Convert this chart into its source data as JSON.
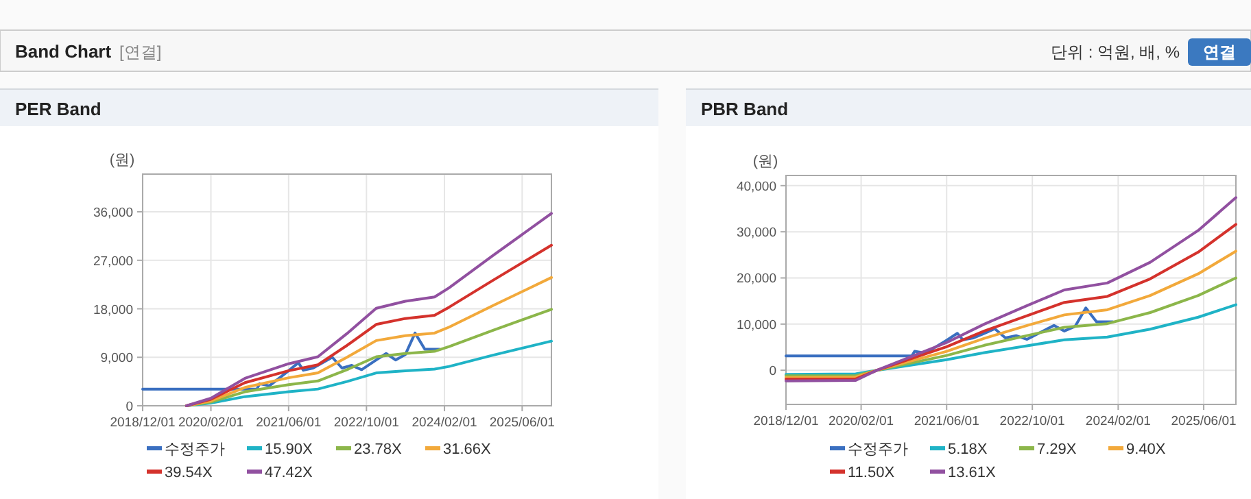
{
  "chart_data": [
    {
      "type": "other",
      "title": "Band Chart",
      "annotations": [
        "[연결]",
        "단위 : 억원, 배, %",
        "연결"
      ]
    },
    {
      "type": "line",
      "title": "PER Band",
      "ylabel": "(원)",
      "x": [
        "2019-09-01",
        "2020-02-01",
        "2020-09-01",
        "2021-06-01",
        "2021-12-01",
        "2022-06-01",
        "2022-12-01",
        "2023-06-01",
        "2023-12-01",
        "2024-03-01",
        "2024-12-01",
        "2025-12-01"
      ],
      "series": [
        {
          "name": "수정주가",
          "color": "#3a6fc0",
          "x": [
            "2018-12-01",
            "2020-11-15",
            "2020-12-01",
            "2021-02-01",
            "2021-06-01",
            "2021-08-01",
            "2021-09-01",
            "2021-11-01",
            "2022-01-01",
            "2022-03-01",
            "2022-05-01",
            "2022-07-01",
            "2022-09-01",
            "2022-12-01",
            "2023-02-01",
            "2023-04-01",
            "2023-06-01",
            "2023-08-01",
            "2023-10-01",
            "2024-01-01"
          ],
          "values": [
            3100,
            3100,
            4100,
            3700,
            6500,
            8000,
            6600,
            7000,
            8000,
            9000,
            7000,
            7500,
            6700,
            8500,
            9700,
            8500,
            9500,
            13500,
            10500,
            10500
          ]
        },
        {
          "name": "15.90X",
          "color": "#1fb3c6",
          "values": [
            0,
            500,
            1700,
            2600,
            3100,
            4500,
            6100,
            6500,
            6800,
            7300,
            9400,
            12000
          ]
        },
        {
          "name": "23.78X",
          "color": "#8cb64a",
          "values": [
            0,
            700,
            2600,
            3900,
            4600,
            6700,
            9100,
            9700,
            10100,
            11000,
            14000,
            17900
          ]
        },
        {
          "name": "31.66X",
          "color": "#f2a93b",
          "values": [
            0,
            900,
            3400,
            5200,
            6100,
            9000,
            12100,
            13000,
            13500,
            14600,
            18600,
            23800
          ]
        },
        {
          "name": "39.54X",
          "color": "#d4322c",
          "values": [
            0,
            1200,
            4300,
            6500,
            7600,
            11200,
            15100,
            16200,
            16800,
            18300,
            23300,
            29800
          ]
        },
        {
          "name": "47.42X",
          "color": "#9150a0",
          "values": [
            0,
            1400,
            5100,
            7800,
            9100,
            13400,
            18100,
            19400,
            20200,
            21900,
            27900,
            35700
          ]
        }
      ],
      "xlim": [
        "2018-12-01",
        "2025-12-01"
      ],
      "ylim": [
        0,
        43000
      ],
      "xticks": [
        {
          "value": "2018-12-01",
          "label": "2018/12/01"
        },
        {
          "value": "2020-02-01",
          "label": "2020/02/01"
        },
        {
          "value": "2021-06-01",
          "label": "2021/06/01"
        },
        {
          "value": "2022-10-01",
          "label": "2022/10/01"
        },
        {
          "value": "2024-02-01",
          "label": "2024/02/01"
        },
        {
          "value": "2025-06-01",
          "label": "2025/06/01"
        }
      ],
      "yticks": [
        {
          "value": 0,
          "label": "0"
        },
        {
          "value": 9000,
          "label": "9,000"
        },
        {
          "value": 18000,
          "label": "18,000"
        },
        {
          "value": 27000,
          "label": "27,000"
        },
        {
          "value": 36000,
          "label": "36,000"
        }
      ],
      "grid": true,
      "legend": "bottom"
    },
    {
      "type": "line",
      "title": "PBR Band",
      "ylabel": "(원)",
      "x": [
        "2018-12-01",
        "2020-01-01",
        "2020-05-01",
        "2021-06-01",
        "2022-01-01",
        "2022-09-01",
        "2023-04-01",
        "2023-12-01",
        "2024-08-01",
        "2025-05-01",
        "2025-12-01"
      ],
      "series": [
        {
          "name": "수정주가",
          "color": "#3a6fc0",
          "x": [
            "2018-12-01",
            "2020-11-15",
            "2020-12-01",
            "2021-02-01",
            "2021-06-01",
            "2021-08-01",
            "2021-09-01",
            "2021-11-01",
            "2022-01-01",
            "2022-03-01",
            "2022-05-01",
            "2022-07-01",
            "2022-09-01",
            "2022-12-01",
            "2023-02-01",
            "2023-04-01",
            "2023-06-01",
            "2023-08-01",
            "2023-10-01",
            "2024-01-01"
          ],
          "values": [
            3100,
            3100,
            4100,
            3700,
            6500,
            8000,
            6600,
            7000,
            8000,
            9000,
            7000,
            7500,
            6700,
            8500,
            9700,
            8500,
            9500,
            13500,
            10500,
            10500
          ]
        },
        {
          "name": "5.18X",
          "color": "#1fb3c6",
          "values": [
            -900,
            -800,
            0,
            2300,
            3800,
            5300,
            6600,
            7200,
            8900,
            11500,
            14200
          ]
        },
        {
          "name": "7.29X",
          "color": "#8cb64a",
          "values": [
            -1200,
            -1200,
            0,
            3200,
            5400,
            7500,
            9300,
            10100,
            12500,
            16200,
            20000
          ]
        },
        {
          "name": "9.40X",
          "color": "#f2a93b",
          "values": [
            -1600,
            -1500,
            0,
            4100,
            6900,
            9700,
            12000,
            13100,
            16200,
            20900,
            25800
          ]
        },
        {
          "name": "11.50X",
          "color": "#d4322c",
          "values": [
            -1900,
            -1900,
            0,
            5100,
            8500,
            11800,
            14700,
            16000,
            19800,
            25600,
            31600
          ]
        },
        {
          "name": "13.61X",
          "color": "#9150a0",
          "values": [
            -2300,
            -2200,
            0,
            6000,
            10000,
            14000,
            17400,
            18900,
            23400,
            30300,
            37400
          ]
        }
      ],
      "xlim": [
        "2018-12-01",
        "2025-12-01"
      ],
      "ylim": [
        -7400,
        42200
      ],
      "xticks": [
        {
          "value": "2018-12-01",
          "label": "2018/12/01"
        },
        {
          "value": "2020-02-01",
          "label": "2020/02/01"
        },
        {
          "value": "2021-06-01",
          "label": "2021/06/01"
        },
        {
          "value": "2022-10-01",
          "label": "2022/10/01"
        },
        {
          "value": "2024-02-01",
          "label": "2024/02/01"
        },
        {
          "value": "2025-06-01",
          "label": "2025/06/01"
        }
      ],
      "yticks": [
        {
          "value": 0,
          "label": "0"
        },
        {
          "value": 10000,
          "label": "10,000"
        },
        {
          "value": 20000,
          "label": "20,000"
        },
        {
          "value": 30000,
          "label": "30,000"
        },
        {
          "value": 40000,
          "label": "40,000"
        }
      ],
      "grid": true,
      "legend": "bottom"
    }
  ]
}
